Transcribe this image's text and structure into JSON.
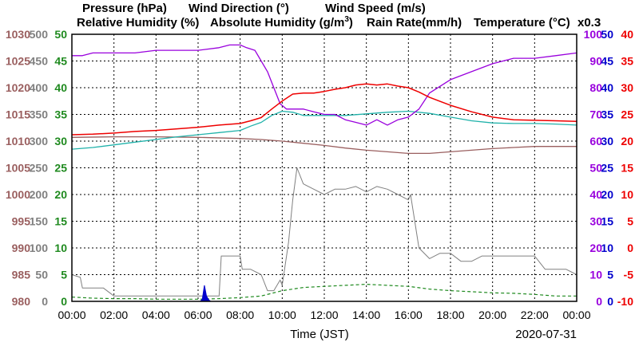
{
  "chart_data": {
    "type": "line",
    "date": "2020-07-31",
    "xlabel": "Time (JST)",
    "x_ticks": [
      "00:00",
      "02:00",
      "04:00",
      "06:00",
      "08:00",
      "10:00",
      "12:00",
      "14:00",
      "16:00",
      "18:00",
      "20:00",
      "22:00",
      "00:00"
    ],
    "grid": true,
    "legend_position": "top",
    "legend": {
      "pressure": "Pressure (hPa)",
      "wind_dir": "Wind Direction (°)",
      "wind_speed": "Wind Speed (m/s)",
      "rh": "Relative Humidity (%)",
      "ah_prefix": "Absolute Humidity (g/m",
      "ah_sup": "3",
      "ah_suffix": ")",
      "rain": "Rain Rate(mm/h)",
      "temp": "Temperature (°C)",
      "rain_scale": "x0.3"
    },
    "colors": {
      "pressure": "#9a5f5f",
      "wind_dir": "#808080",
      "wind_speed": "#1f8a1f",
      "rh": "#9900dd",
      "ah": "#20b2aa",
      "rain": "#0000cc",
      "temp": "#ee0000",
      "grid": "#000000"
    },
    "axes": {
      "pressure": {
        "range": [
          980,
          1030
        ],
        "ticks": [
          "1030",
          "1025",
          "1020",
          "1015",
          "1010",
          "1005",
          "1000",
          "995",
          "990",
          "985",
          "980"
        ]
      },
      "wind_dir": {
        "range": [
          0,
          500
        ],
        "ticks": [
          "500",
          "450",
          "400",
          "350",
          "300",
          "250",
          "200",
          "150",
          "100",
          "50",
          "0"
        ]
      },
      "wind_speed": {
        "range": [
          0,
          50
        ],
        "ticks": [
          "50",
          "45",
          "40",
          "35",
          "30",
          "25",
          "20",
          "15",
          "10",
          "5",
          "0"
        ]
      },
      "rh": {
        "range": [
          0,
          100
        ],
        "ticks": [
          "100",
          "90",
          "80",
          "70",
          "60",
          "50",
          "40",
          "30",
          "20",
          "10",
          "0"
        ]
      },
      "rain": {
        "range": [
          0,
          50
        ],
        "ticks": [
          "50",
          "45",
          "40",
          "35",
          "30",
          "25",
          "20",
          "15",
          "10",
          "5",
          "0"
        ]
      },
      "temp": {
        "range": [
          -10,
          40
        ],
        "ticks": [
          "40",
          "35",
          "30",
          "25",
          "20",
          "15",
          "10",
          "5",
          "0",
          "-5",
          "-10"
        ]
      }
    },
    "series": [
      {
        "name": "Relative Humidity (%)",
        "key": "rh",
        "unit": "%",
        "x": [
          0,
          0.5,
          1,
          2,
          3,
          4,
          5,
          6,
          7,
          7.5,
          8,
          8.3,
          8.7,
          9,
          9.3,
          9.6,
          9.9,
          10.2,
          10.5,
          11,
          11.5,
          12,
          12.5,
          13,
          13.5,
          14,
          14.5,
          15,
          15.5,
          16,
          16.5,
          17,
          18,
          19,
          20,
          21,
          22,
          23,
          24
        ],
        "y": [
          92,
          92,
          93,
          93,
          93,
          94,
          94,
          94,
          95,
          96,
          96,
          95,
          94,
          90,
          86,
          80,
          74,
          72,
          72,
          72,
          71,
          70,
          70,
          68,
          67,
          66,
          68,
          66,
          68,
          69,
          72,
          78,
          83,
          86,
          89,
          91,
          91,
          92,
          93
        ]
      },
      {
        "name": "Absolute Humidity (g/m3)",
        "key": "ah",
        "unit": "g/m3",
        "x": [
          0,
          1,
          2,
          3,
          4,
          5,
          6,
          7,
          8,
          8.5,
          9,
          9.5,
          10,
          10.5,
          11,
          12,
          13,
          14,
          15,
          16,
          17,
          18,
          19,
          20,
          21,
          22,
          23,
          24
        ],
        "y": [
          28.5,
          28.8,
          29.3,
          29.8,
          30.3,
          30.8,
          31.2,
          31.6,
          32,
          32.8,
          33.5,
          34.8,
          35.6,
          35.4,
          34.8,
          34.8,
          34.8,
          35.1,
          35.4,
          35.6,
          35.2,
          34.5,
          33.8,
          33.4,
          33.3,
          33.3,
          33.2,
          33
        ]
      },
      {
        "name": "Temperature (°C)",
        "key": "temp",
        "unit": "°C",
        "x": [
          0,
          1,
          2,
          3,
          4,
          5,
          6,
          7,
          8,
          8.5,
          9,
          9.5,
          10,
          10.5,
          11,
          11.5,
          12,
          12.5,
          13,
          13.5,
          14,
          14.5,
          15,
          15.5,
          16,
          16.5,
          17,
          18,
          19,
          20,
          21,
          22,
          23,
          24
        ],
        "y": [
          21.2,
          21.3,
          21.5,
          21.8,
          22,
          22.3,
          22.6,
          23,
          23.3,
          23.8,
          24.4,
          26,
          27.5,
          28.8,
          29,
          29,
          29.3,
          29.7,
          30,
          30.5,
          30.7,
          30.5,
          30.7,
          30.3,
          30,
          29.2,
          28.2,
          26.7,
          25.5,
          24.5,
          24,
          23.9,
          23.8,
          23.7
        ]
      },
      {
        "name": "Pressure (hPa)",
        "key": "pressure",
        "unit": "hPa",
        "x": [
          0,
          2,
          4,
          6,
          8,
          9,
          10,
          11,
          12,
          13,
          14,
          15,
          16,
          17,
          18,
          19,
          20,
          21,
          22,
          23,
          24
        ],
        "y": [
          1010.7,
          1010.8,
          1010.8,
          1010.7,
          1010.5,
          1010.3,
          1010,
          1009.6,
          1009.2,
          1008.7,
          1008.3,
          1008.0,
          1007.7,
          1007.7,
          1008.0,
          1008.3,
          1008.6,
          1008.8,
          1009.0,
          1009.0,
          1009.0
        ]
      },
      {
        "name": "Wind Direction (°)",
        "key": "wind_dir",
        "unit": "°",
        "x": [
          0,
          0.4,
          0.5,
          1,
          1.5,
          2,
          3,
          4,
          5,
          6,
          6.5,
          7,
          7.1,
          7.5,
          8,
          8.1,
          8.5,
          9,
          9.3,
          9.6,
          9.9,
          10,
          10.3,
          10.5,
          10.7,
          11,
          11.5,
          12,
          12.5,
          13,
          13.5,
          14,
          14.5,
          15,
          15.5,
          16,
          16.1,
          16.5,
          17,
          17.5,
          18,
          18.5,
          19,
          19.5,
          20,
          21,
          22,
          22.5,
          23,
          23.5,
          24
        ],
        "y": [
          50,
          45,
          25,
          25,
          25,
          10,
          10,
          10,
          10,
          10,
          10,
          10,
          85,
          85,
          85,
          60,
          60,
          50,
          20,
          20,
          40,
          30,
          110,
          190,
          250,
          220,
          210,
          200,
          210,
          210,
          215,
          205,
          215,
          210,
          200,
          190,
          200,
          100,
          80,
          90,
          90,
          75,
          75,
          85,
          85,
          85,
          85,
          60,
          60,
          60,
          50
        ]
      },
      {
        "name": "Wind Speed (m/s)",
        "key": "wind_speed",
        "unit": "m/s",
        "x": [
          0,
          1,
          2,
          3,
          4,
          5,
          6,
          7,
          8,
          9,
          10,
          11,
          12,
          13,
          14,
          15,
          16,
          17,
          18,
          19,
          20,
          21,
          22,
          23,
          24
        ],
        "y": [
          0.8,
          0.6,
          0.5,
          0.5,
          0.4,
          0.4,
          0.4,
          0.5,
          0.7,
          1.0,
          2.0,
          2.6,
          2.8,
          3.0,
          3.2,
          3.0,
          2.8,
          2.3,
          2.0,
          1.8,
          1.6,
          1.5,
          1.3,
          1.0,
          1.0
        ]
      },
      {
        "name": "Rain Rate(mm/h)",
        "key": "rain",
        "unit": "mm/h",
        "x": [
          6.1,
          6.2,
          6.3,
          6.4,
          6.5,
          6.6
        ],
        "y": [
          0,
          0.4,
          3.0,
          1.0,
          0.3,
          0
        ]
      }
    ]
  }
}
